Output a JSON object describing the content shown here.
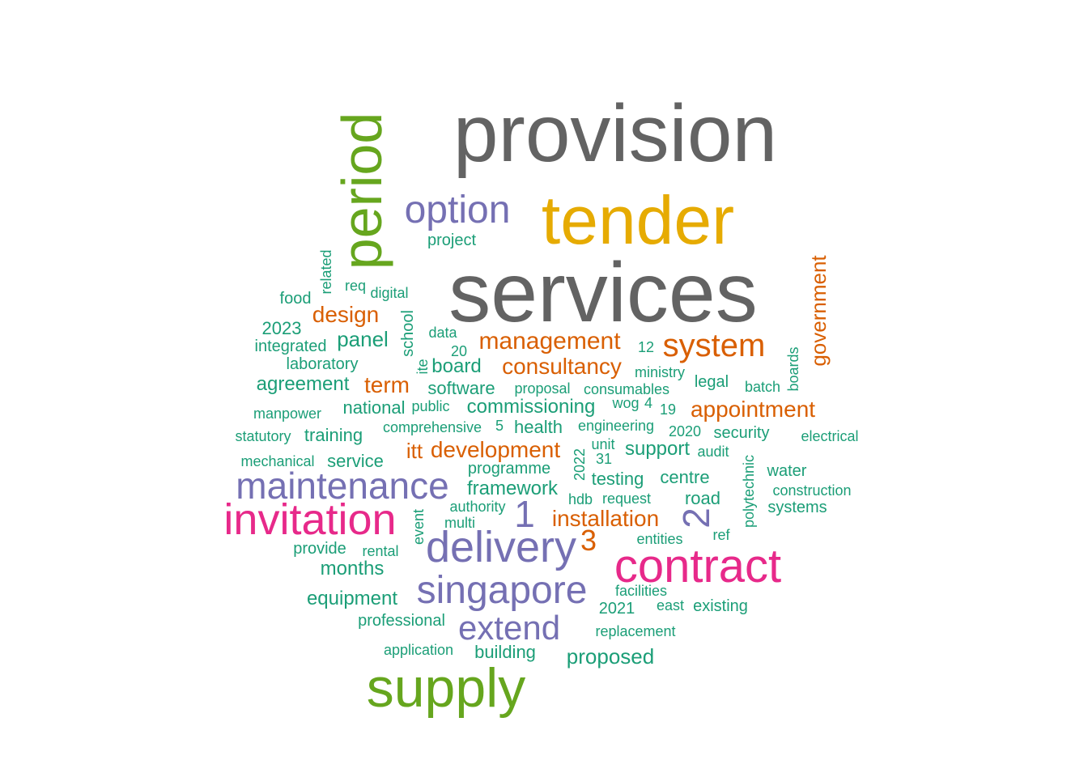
{
  "colors": {
    "gray": "#636363",
    "green": "#66a61e",
    "gold": "#e6ab02",
    "purple": "#7570b3",
    "pink": "#e7298a",
    "orange": "#d95f02",
    "teal": "#1b9e77"
  },
  "words": [
    {
      "text": "provision",
      "color": "gray"
    },
    {
      "text": "services",
      "color": "gray"
    },
    {
      "text": "tender",
      "color": "gold"
    },
    {
      "text": "period",
      "color": "green"
    },
    {
      "text": "supply",
      "color": "green"
    },
    {
      "text": "option",
      "color": "purple"
    },
    {
      "text": "contract",
      "color": "pink"
    },
    {
      "text": "invitation",
      "color": "pink"
    },
    {
      "text": "maintenance",
      "color": "purple"
    },
    {
      "text": "delivery",
      "color": "purple"
    },
    {
      "text": "singapore",
      "color": "purple"
    },
    {
      "text": "extend",
      "color": "purple"
    },
    {
      "text": "1",
      "color": "purple"
    },
    {
      "text": "2",
      "color": "purple"
    },
    {
      "text": "system",
      "color": "orange"
    },
    {
      "text": "management",
      "color": "orange"
    },
    {
      "text": "government",
      "color": "orange"
    },
    {
      "text": "appointment",
      "color": "orange"
    },
    {
      "text": "consultancy",
      "color": "orange"
    },
    {
      "text": "development",
      "color": "orange"
    },
    {
      "text": "installation",
      "color": "orange"
    },
    {
      "text": "design",
      "color": "orange"
    },
    {
      "text": "term",
      "color": "orange"
    },
    {
      "text": "3",
      "color": "orange"
    },
    {
      "text": "itt",
      "color": "orange"
    },
    {
      "text": "project",
      "color": "teal"
    },
    {
      "text": "related",
      "color": "teal"
    },
    {
      "text": "req",
      "color": "teal"
    },
    {
      "text": "digital",
      "color": "teal"
    },
    {
      "text": "food",
      "color": "teal"
    },
    {
      "text": "2023",
      "color": "teal"
    },
    {
      "text": "school",
      "color": "teal"
    },
    {
      "text": "data",
      "color": "teal"
    },
    {
      "text": "integrated",
      "color": "teal"
    },
    {
      "text": "panel",
      "color": "teal"
    },
    {
      "text": "laboratory",
      "color": "teal"
    },
    {
      "text": "20",
      "color": "teal"
    },
    {
      "text": "board",
      "color": "teal"
    },
    {
      "text": "12",
      "color": "teal"
    },
    {
      "text": "ite",
      "color": "teal"
    },
    {
      "text": "agreement",
      "color": "teal"
    },
    {
      "text": "ministry",
      "color": "teal"
    },
    {
      "text": "boards",
      "color": "teal"
    },
    {
      "text": "legal",
      "color": "teal"
    },
    {
      "text": "software",
      "color": "teal"
    },
    {
      "text": "proposal",
      "color": "teal"
    },
    {
      "text": "consumables",
      "color": "teal"
    },
    {
      "text": "batch",
      "color": "teal"
    },
    {
      "text": "national",
      "color": "teal"
    },
    {
      "text": "public",
      "color": "teal"
    },
    {
      "text": "commissioning",
      "color": "teal"
    },
    {
      "text": "wog",
      "color": "teal"
    },
    {
      "text": "4",
      "color": "teal"
    },
    {
      "text": "19",
      "color": "teal"
    },
    {
      "text": "manpower",
      "color": "teal"
    },
    {
      "text": "comprehensive",
      "color": "teal"
    },
    {
      "text": "5",
      "color": "teal"
    },
    {
      "text": "health",
      "color": "teal"
    },
    {
      "text": "engineering",
      "color": "teal"
    },
    {
      "text": "2020",
      "color": "teal"
    },
    {
      "text": "security",
      "color": "teal"
    },
    {
      "text": "statutory",
      "color": "teal"
    },
    {
      "text": "training",
      "color": "teal"
    },
    {
      "text": "electrical",
      "color": "teal"
    },
    {
      "text": "2022",
      "color": "teal"
    },
    {
      "text": "unit",
      "color": "teal"
    },
    {
      "text": "support",
      "color": "teal"
    },
    {
      "text": "audit",
      "color": "teal"
    },
    {
      "text": "polytechnic",
      "color": "teal"
    },
    {
      "text": "mechanical",
      "color": "teal"
    },
    {
      "text": "service",
      "color": "teal"
    },
    {
      "text": "31",
      "color": "teal"
    },
    {
      "text": "programme",
      "color": "teal"
    },
    {
      "text": "water",
      "color": "teal"
    },
    {
      "text": "testing",
      "color": "teal"
    },
    {
      "text": "centre",
      "color": "teal"
    },
    {
      "text": "framework",
      "color": "teal"
    },
    {
      "text": "construction",
      "color": "teal"
    },
    {
      "text": "hdb",
      "color": "teal"
    },
    {
      "text": "request",
      "color": "teal"
    },
    {
      "text": "road",
      "color": "teal"
    },
    {
      "text": "systems",
      "color": "teal"
    },
    {
      "text": "authority",
      "color": "teal"
    },
    {
      "text": "event",
      "color": "teal"
    },
    {
      "text": "multi",
      "color": "teal"
    },
    {
      "text": "ref",
      "color": "teal"
    },
    {
      "text": "entities",
      "color": "teal"
    },
    {
      "text": "provide",
      "color": "teal"
    },
    {
      "text": "rental",
      "color": "teal"
    },
    {
      "text": "months",
      "color": "teal"
    },
    {
      "text": "facilities",
      "color": "teal"
    },
    {
      "text": "equipment",
      "color": "teal"
    },
    {
      "text": "2021",
      "color": "teal"
    },
    {
      "text": "east",
      "color": "teal"
    },
    {
      "text": "existing",
      "color": "teal"
    },
    {
      "text": "professional",
      "color": "teal"
    },
    {
      "text": "replacement",
      "color": "teal"
    },
    {
      "text": "application",
      "color": "teal"
    },
    {
      "text": "building",
      "color": "teal"
    },
    {
      "text": "proposed",
      "color": "teal"
    }
  ]
}
